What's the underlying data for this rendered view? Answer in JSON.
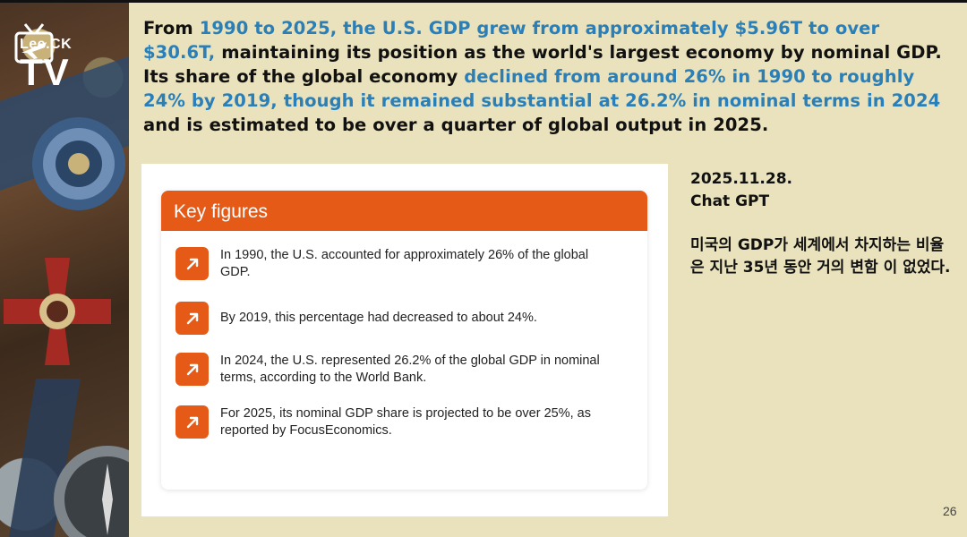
{
  "logo": {
    "small": "Lee.CK",
    "big": "TV"
  },
  "intro": {
    "p1": "From ",
    "h1": "1990 to 2025, the U.S. GDP grew from approximately $5.96T to over $30.6T,",
    "p2": " maintaining its position as the world's largest economy by nominal GDP. Its share of the global economy ",
    "h2": "declined from around 26% in 1990 to roughly 24% by 2019, though it remained substantial at 26.2% in nominal terms in 2024",
    "p3": " and is estimated to be over a quarter of global output in 2025."
  },
  "card": {
    "title": "Key figures",
    "items": [
      "In 1990, the U.S. accounted for approximately 26% of the global GDP.",
      "By 2019, this percentage had decreased to about 24%.",
      "In 2024, the U.S. represented 26.2% of the global GDP in nominal terms, according to the World Bank.",
      "For 2025, its nominal GDP share is projected to be over 25%, as reported by FocusEconomics."
    ]
  },
  "side": {
    "date": "2025.11.28.",
    "source": "Chat GPT",
    "note": "미국의 GDP가 세계에서 차지하는 비율은 지난 35년 동안 거의 변함 이 없었다."
  },
  "page_number": "26",
  "colors": {
    "accent": "#e55a17",
    "highlight": "#2a7fb8",
    "background": "#e9e2bc"
  }
}
